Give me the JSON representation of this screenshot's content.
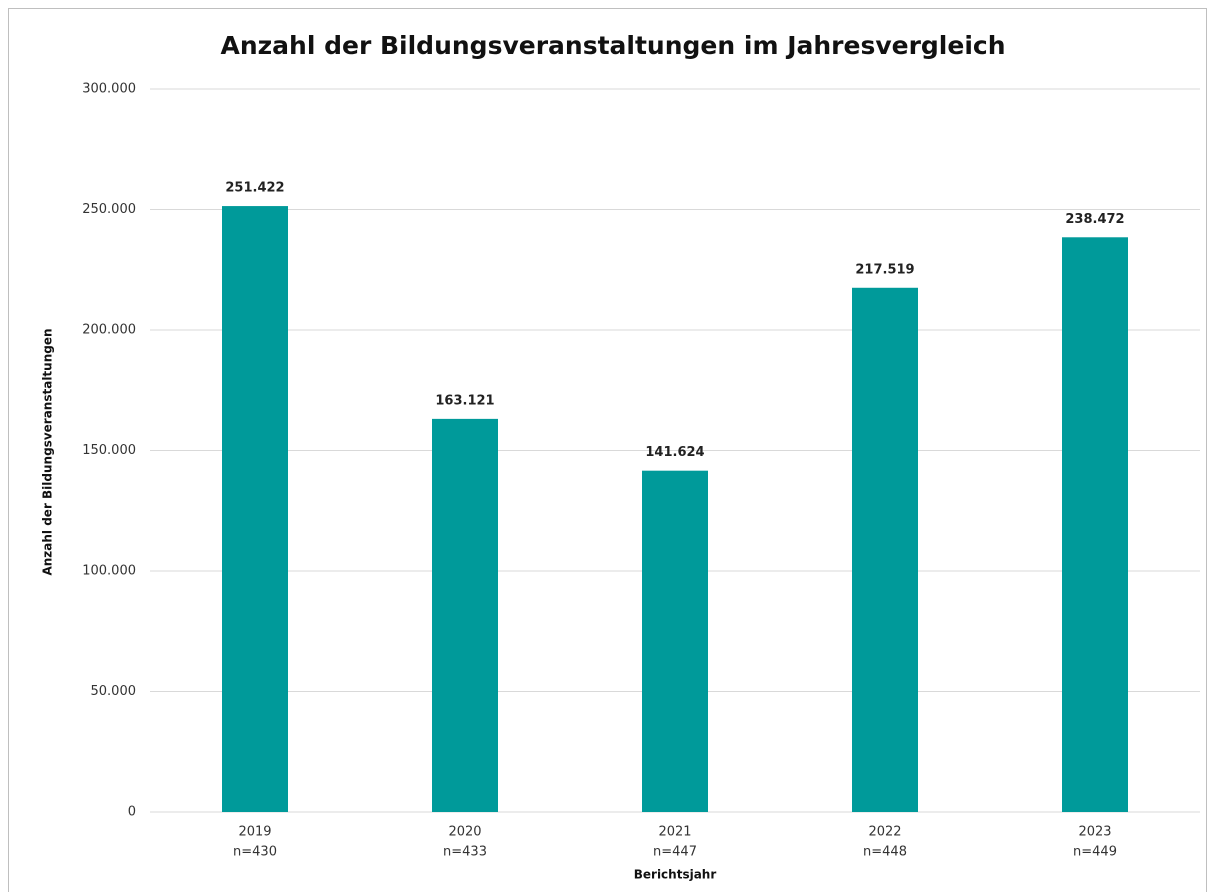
{
  "chart_data": {
    "type": "bar",
    "title": "Anzahl der Bildungsveranstaltungen im Jahresvergleich",
    "y_label": "Anzahl der Bildungsveranstaltungen",
    "x_label": "Berichtsjahr",
    "categories": [
      "2019",
      "2020",
      "2021",
      "2022",
      "2023"
    ],
    "category_notes": [
      "n=430",
      "n=433",
      "n=447",
      "n=448",
      "n=449"
    ],
    "values": [
      251422,
      163121,
      141624,
      217519,
      238472
    ],
    "value_labels": [
      "251.422",
      "163.121",
      "141.624",
      "217.519",
      "238.472"
    ],
    "color": "#009a9a",
    "ylim": [
      0,
      300000
    ],
    "yticks": [
      0,
      {
        "value": 50000,
        "label": "50.000"
      },
      {
        "value": 100000,
        "label": "100.000"
      },
      {
        "value": 150000,
        "label": "150.000"
      },
      {
        "value": 200000,
        "label": "200.000"
      },
      {
        "value": 250000,
        "label": "250.000"
      },
      {
        "value": 300000,
        "label": "300.000"
      }
    ],
    "grid": true
  }
}
